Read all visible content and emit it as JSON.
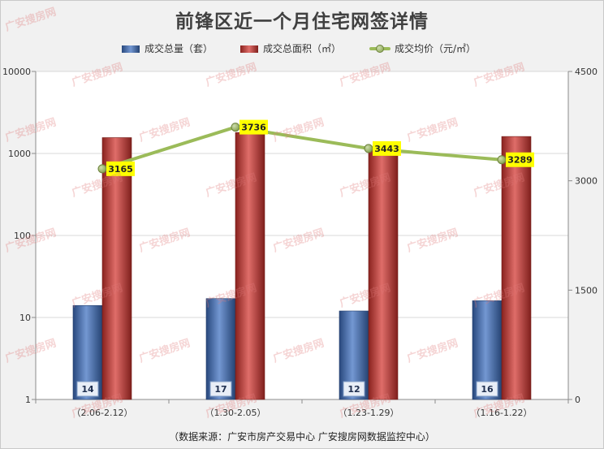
{
  "chart_data": {
    "type": "bar",
    "title": "前锋区近一个月住宅网签详情",
    "note": "（数据来源：广安市房产交易中心 广安搜房网数据监控中心）",
    "categories": [
      "（2.06-2.12）",
      "（1.30-2.05）",
      "（1.23-1.29）",
      "（1.16-1.22）"
    ],
    "series": [
      {
        "name": "成交总量（套）",
        "type": "bar",
        "color": "#3d6fc0",
        "data_labels": true,
        "values": [
          14,
          17,
          12,
          16
        ]
      },
      {
        "name": "成交总面积（㎡）",
        "type": "bar",
        "color": "#d3342e",
        "data_labels": false,
        "values": [
          1560,
          1800,
          1100,
          1610
        ]
      },
      {
        "name": "成交均价（元/㎡）",
        "type": "line",
        "color": "#9bbb59",
        "label_fill": "#ffff00",
        "data_labels": true,
        "values": [
          3165,
          3736,
          3443,
          3289
        ]
      }
    ],
    "y_left": {
      "scale": "log",
      "range": [
        1,
        10000
      ],
      "ticks": [
        1,
        10,
        100,
        1000,
        10000
      ],
      "series": [
        0,
        1
      ]
    },
    "y_right": {
      "scale": "linear",
      "range": [
        0,
        4500
      ],
      "ticks": [
        0,
        1500,
        3000,
        4500
      ],
      "series": [
        2
      ]
    },
    "grid": true,
    "legend": "top"
  },
  "watermark": "广安搜房网"
}
